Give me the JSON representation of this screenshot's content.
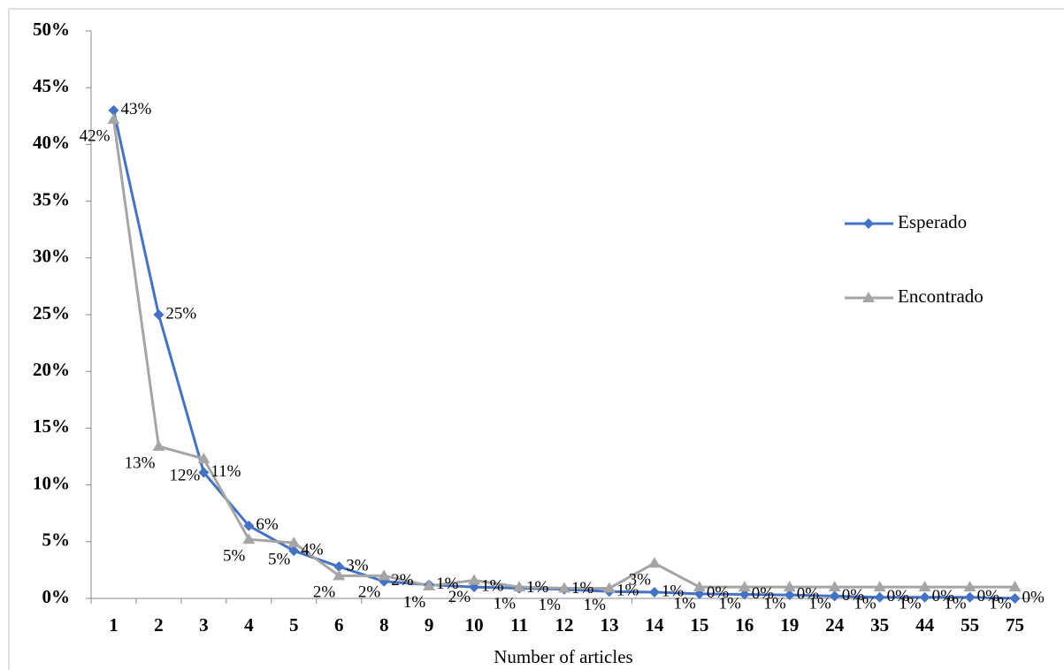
{
  "chart_data": {
    "type": "line",
    "xlabel": "Number of articles",
    "categories": [
      "1",
      "2",
      "3",
      "4",
      "5",
      "6",
      "8",
      "9",
      "10",
      "11",
      "12",
      "13",
      "14",
      "15",
      "16",
      "19",
      "24",
      "35",
      "44",
      "55",
      "75"
    ],
    "series": [
      {
        "name": "Esperado",
        "color": "#4472c4",
        "marker": "diamond",
        "values": [
          43,
          25,
          11.1,
          6.4,
          4.2,
          2.8,
          1.5,
          1.2,
          1.0,
          0.9,
          0.8,
          0.6,
          0.55,
          0.4,
          0.35,
          0.3,
          0.2,
          0.1,
          0.1,
          0.1,
          0
        ],
        "value_labels": [
          "43%",
          "25%",
          "11%",
          "6%",
          "4%",
          "3%",
          "2%",
          "1%",
          "1%",
          "1%",
          "1%",
          "1%",
          "1%",
          "0%",
          "0%",
          "0%",
          "0%",
          "0%",
          "0%",
          "0%",
          "0%"
        ]
      },
      {
        "name": "Encontrado",
        "color": "#a5a5a5",
        "marker": "triangle",
        "values": [
          42.2,
          13.4,
          12.3,
          5.2,
          4.9,
          2.0,
          2.0,
          1.1,
          1.6,
          1.0,
          0.9,
          0.9,
          3.1,
          1.0,
          1.0,
          1.0,
          1.0,
          1.0,
          1.0,
          1.0,
          1.0
        ],
        "value_labels": [
          "42%",
          "13%",
          "12%",
          "5%",
          "5%",
          "2%",
          "2%",
          "1%",
          "2%",
          "1%",
          "1%",
          "1%",
          "3%",
          "1%",
          "1%",
          "1%",
          "1%",
          "1%",
          "1%",
          "1%",
          "1%"
        ]
      }
    ],
    "ylim": [
      0,
      50
    ],
    "yticks": [
      {
        "value": 0,
        "label": "0%"
      },
      {
        "value": 5,
        "label": "5%"
      },
      {
        "value": 10,
        "label": "10%"
      },
      {
        "value": 15,
        "label": "15%"
      },
      {
        "value": 20,
        "label": "20%"
      },
      {
        "value": 25,
        "label": "25%"
      },
      {
        "value": 30,
        "label": "30%"
      },
      {
        "value": 35,
        "label": "35%"
      },
      {
        "value": 40,
        "label": "40%"
      },
      {
        "value": 45,
        "label": "45%"
      },
      {
        "value": 50,
        "label": "50%"
      }
    ],
    "grid": false,
    "legend": "right"
  }
}
